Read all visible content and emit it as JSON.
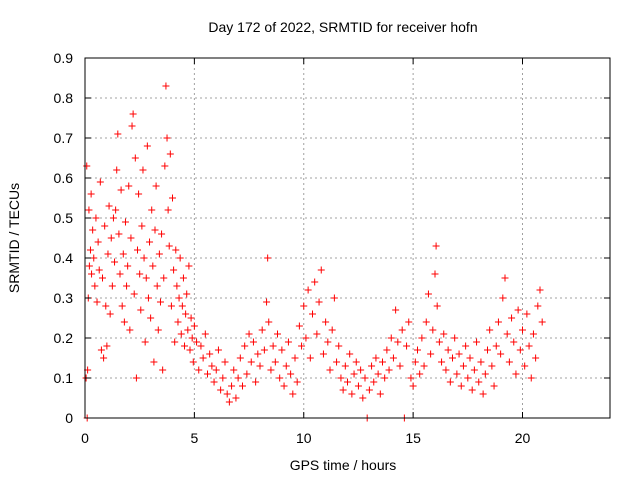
{
  "chart_data": {
    "type": "scatter",
    "title": "Day 172 of 2022, SRMTID for receiver hofn",
    "xlabel": "GPS time / hours",
    "ylabel": "SRMTID / TECUs",
    "xlim": [
      0,
      24
    ],
    "ylim": [
      0,
      0.9
    ],
    "xticks": [
      0,
      5,
      10,
      15,
      20
    ],
    "xtick_labels": [
      "0",
      "5",
      "10",
      "15",
      "20"
    ],
    "yticks": [
      0,
      0.1,
      0.2,
      0.3,
      0.4,
      0.5,
      0.6,
      0.7,
      0.8,
      0.9
    ],
    "ytick_labels": [
      "0",
      "0.1",
      "0.2",
      "0.3",
      "0.4",
      "0.5",
      "0.6",
      "0.7",
      "0.8",
      "0.9"
    ],
    "grid": true,
    "marker": "+",
    "marker_color": "#ff0000",
    "series": [
      {
        "name": "SRMTID",
        "points": [
          [
            0.05,
            0.1
          ],
          [
            0.08,
            0.63
          ],
          [
            0.1,
            0.0
          ],
          [
            0.12,
            0.12
          ],
          [
            0.15,
            0.3
          ],
          [
            0.18,
            0.52
          ],
          [
            0.2,
            0.38
          ],
          [
            0.25,
            0.42
          ],
          [
            0.28,
            0.56
          ],
          [
            0.3,
            0.36
          ],
          [
            0.35,
            0.47
          ],
          [
            0.4,
            0.4
          ],
          [
            0.45,
            0.33
          ],
          [
            0.5,
            0.5
          ],
          [
            0.55,
            0.29
          ],
          [
            0.6,
            0.44
          ],
          [
            0.65,
            0.37
          ],
          [
            0.7,
            0.59
          ],
          [
            0.75,
            0.17
          ],
          [
            0.8,
            0.35
          ],
          [
            0.85,
            0.15
          ],
          [
            0.9,
            0.48
          ],
          [
            0.95,
            0.28
          ],
          [
            1.0,
            0.18
          ],
          [
            1.05,
            0.41
          ],
          [
            1.1,
            0.53
          ],
          [
            1.15,
            0.26
          ],
          [
            1.2,
            0.45
          ],
          [
            1.25,
            0.33
          ],
          [
            1.3,
            0.5
          ],
          [
            1.35,
            0.39
          ],
          [
            1.4,
            0.52
          ],
          [
            1.45,
            0.62
          ],
          [
            1.5,
            0.71
          ],
          [
            1.55,
            0.46
          ],
          [
            1.6,
            0.36
          ],
          [
            1.65,
            0.57
          ],
          [
            1.7,
            0.28
          ],
          [
            1.75,
            0.41
          ],
          [
            1.8,
            0.24
          ],
          [
            1.85,
            0.49
          ],
          [
            1.9,
            0.33
          ],
          [
            1.95,
            0.38
          ],
          [
            2.0,
            0.58
          ],
          [
            2.05,
            0.22
          ],
          [
            2.1,
            0.45
          ],
          [
            2.15,
            0.73
          ],
          [
            2.2,
            0.76
          ],
          [
            2.25,
            0.31
          ],
          [
            2.3,
            0.65
          ],
          [
            2.35,
            0.1
          ],
          [
            2.4,
            0.42
          ],
          [
            2.45,
            0.56
          ],
          [
            2.5,
            0.36
          ],
          [
            2.55,
            0.27
          ],
          [
            2.6,
            0.48
          ],
          [
            2.65,
            0.62
          ],
          [
            2.7,
            0.4
          ],
          [
            2.75,
            0.19
          ],
          [
            2.8,
            0.35
          ],
          [
            2.85,
            0.68
          ],
          [
            2.9,
            0.3
          ],
          [
            2.95,
            0.44
          ],
          [
            3.0,
            0.25
          ],
          [
            3.05,
            0.52
          ],
          [
            3.1,
            0.38
          ],
          [
            3.15,
            0.14
          ],
          [
            3.2,
            0.47
          ],
          [
            3.25,
            0.58
          ],
          [
            3.3,
            0.33
          ],
          [
            3.35,
            0.22
          ],
          [
            3.4,
            0.41
          ],
          [
            3.45,
            0.29
          ],
          [
            3.5,
            0.46
          ],
          [
            3.55,
            0.12
          ],
          [
            3.6,
            0.35
          ],
          [
            3.65,
            0.63
          ],
          [
            3.7,
            0.83
          ],
          [
            3.75,
            0.7
          ],
          [
            3.8,
            0.52
          ],
          [
            3.85,
            0.43
          ],
          [
            3.9,
            0.66
          ],
          [
            3.95,
            0.28
          ],
          [
            4.0,
            0.55
          ],
          [
            4.05,
            0.37
          ],
          [
            4.1,
            0.19
          ],
          [
            4.15,
            0.42
          ],
          [
            4.2,
            0.33
          ],
          [
            4.25,
            0.24
          ],
          [
            4.3,
            0.3
          ],
          [
            4.35,
            0.4
          ],
          [
            4.4,
            0.21
          ],
          [
            4.45,
            0.28
          ],
          [
            4.5,
            0.35
          ],
          [
            4.55,
            0.18
          ],
          [
            4.6,
            0.26
          ],
          [
            4.65,
            0.31
          ],
          [
            4.7,
            0.22
          ],
          [
            4.75,
            0.38
          ],
          [
            4.8,
            0.17
          ],
          [
            4.85,
            0.25
          ],
          [
            4.9,
            0.2
          ],
          [
            4.95,
            0.14
          ],
          [
            5.0,
            0.23
          ],
          [
            5.1,
            0.19
          ],
          [
            5.2,
            0.12
          ],
          [
            5.3,
            0.18
          ],
          [
            5.4,
            0.15
          ],
          [
            5.5,
            0.21
          ],
          [
            5.6,
            0.11
          ],
          [
            5.7,
            0.16
          ],
          [
            5.8,
            0.13
          ],
          [
            5.9,
            0.09
          ],
          [
            6.0,
            0.12
          ],
          [
            6.1,
            0.17
          ],
          [
            6.2,
            0.07
          ],
          [
            6.3,
            0.1
          ],
          [
            6.4,
            0.14
          ],
          [
            6.5,
            0.06
          ],
          [
            6.6,
            0.04
          ],
          [
            6.7,
            0.08
          ],
          [
            6.8,
            0.12
          ],
          [
            6.9,
            0.05
          ],
          [
            7.0,
            0.1
          ],
          [
            7.1,
            0.15
          ],
          [
            7.2,
            0.08
          ],
          [
            7.3,
            0.18
          ],
          [
            7.4,
            0.11
          ],
          [
            7.5,
            0.21
          ],
          [
            7.6,
            0.14
          ],
          [
            7.7,
            0.19
          ],
          [
            7.8,
            0.09
          ],
          [
            7.9,
            0.16
          ],
          [
            8.0,
            0.13
          ],
          [
            8.1,
            0.22
          ],
          [
            8.2,
            0.17
          ],
          [
            8.3,
            0.29
          ],
          [
            8.35,
            0.4
          ],
          [
            8.4,
            0.24
          ],
          [
            8.5,
            0.12
          ],
          [
            8.6,
            0.18
          ],
          [
            8.7,
            0.14
          ],
          [
            8.8,
            0.21
          ],
          [
            8.9,
            0.1
          ],
          [
            9.0,
            0.17
          ],
          [
            9.1,
            0.08
          ],
          [
            9.2,
            0.13
          ],
          [
            9.3,
            0.19
          ],
          [
            9.4,
            0.11
          ],
          [
            9.5,
            0.06
          ],
          [
            9.6,
            0.15
          ],
          [
            9.7,
            0.09
          ],
          [
            9.8,
            0.23
          ],
          [
            9.9,
            0.18
          ],
          [
            10.0,
            0.28
          ],
          [
            10.1,
            0.2
          ],
          [
            10.2,
            0.32
          ],
          [
            10.3,
            0.15
          ],
          [
            10.4,
            0.26
          ],
          [
            10.5,
            0.34
          ],
          [
            10.6,
            0.21
          ],
          [
            10.7,
            0.29
          ],
          [
            10.8,
            0.37
          ],
          [
            10.9,
            0.16
          ],
          [
            11.0,
            0.24
          ],
          [
            11.1,
            0.19
          ],
          [
            11.2,
            0.12
          ],
          [
            11.3,
            0.22
          ],
          [
            11.4,
            0.3
          ],
          [
            11.5,
            0.14
          ],
          [
            11.6,
            0.18
          ],
          [
            11.7,
            0.1
          ],
          [
            11.8,
            0.07
          ],
          [
            11.9,
            0.13
          ],
          [
            12.0,
            0.09
          ],
          [
            12.1,
            0.16
          ],
          [
            12.2,
            0.06
          ],
          [
            12.3,
            0.11
          ],
          [
            12.4,
            0.14
          ],
          [
            12.5,
            0.08
          ],
          [
            12.6,
            0.12
          ],
          [
            12.7,
            0.05
          ],
          [
            12.8,
            0.1
          ],
          [
            12.9,
            0.0
          ],
          [
            13.0,
            0.07
          ],
          [
            13.1,
            0.13
          ],
          [
            13.2,
            0.09
          ],
          [
            13.3,
            0.15
          ],
          [
            13.4,
            0.11
          ],
          [
            13.5,
            0.06
          ],
          [
            13.6,
            0.14
          ],
          [
            13.7,
            0.1
          ],
          [
            13.8,
            0.17
          ],
          [
            13.9,
            0.12
          ],
          [
            14.0,
            0.2
          ],
          [
            14.1,
            0.15
          ],
          [
            14.2,
            0.27
          ],
          [
            14.3,
            0.19
          ],
          [
            14.4,
            0.13
          ],
          [
            14.5,
            0.22
          ],
          [
            14.6,
            0.0
          ],
          [
            14.7,
            0.18
          ],
          [
            14.8,
            0.24
          ],
          [
            14.9,
            0.1
          ],
          [
            15.0,
            0.08
          ],
          [
            15.1,
            0.14
          ],
          [
            15.2,
            0.17
          ],
          [
            15.3,
            0.11
          ],
          [
            15.4,
            0.2
          ],
          [
            15.5,
            0.13
          ],
          [
            15.6,
            0.24
          ],
          [
            15.7,
            0.31
          ],
          [
            15.8,
            0.16
          ],
          [
            15.9,
            0.22
          ],
          [
            16.0,
            0.36
          ],
          [
            16.05,
            0.43
          ],
          [
            16.1,
            0.28
          ],
          [
            16.2,
            0.19
          ],
          [
            16.3,
            0.14
          ],
          [
            16.4,
            0.21
          ],
          [
            16.5,
            0.12
          ],
          [
            16.6,
            0.17
          ],
          [
            16.7,
            0.09
          ],
          [
            16.8,
            0.15
          ],
          [
            16.9,
            0.2
          ],
          [
            17.0,
            0.11
          ],
          [
            17.1,
            0.16
          ],
          [
            17.2,
            0.08
          ],
          [
            17.3,
            0.13
          ],
          [
            17.4,
            0.18
          ],
          [
            17.5,
            0.1
          ],
          [
            17.6,
            0.15
          ],
          [
            17.7,
            0.07
          ],
          [
            17.8,
            0.12
          ],
          [
            17.9,
            0.19
          ],
          [
            18.0,
            0.09
          ],
          [
            18.1,
            0.14
          ],
          [
            18.2,
            0.06
          ],
          [
            18.3,
            0.11
          ],
          [
            18.4,
            0.17
          ],
          [
            18.5,
            0.22
          ],
          [
            18.6,
            0.13
          ],
          [
            18.7,
            0.08
          ],
          [
            18.8,
            0.18
          ],
          [
            18.9,
            0.24
          ],
          [
            19.0,
            0.16
          ],
          [
            19.1,
            0.3
          ],
          [
            19.2,
            0.35
          ],
          [
            19.3,
            0.21
          ],
          [
            19.4,
            0.14
          ],
          [
            19.5,
            0.25
          ],
          [
            19.6,
            0.19
          ],
          [
            19.7,
            0.11
          ],
          [
            19.8,
            0.27
          ],
          [
            19.9,
            0.17
          ],
          [
            20.0,
            0.22
          ],
          [
            20.1,
            0.13
          ],
          [
            20.2,
            0.26
          ],
          [
            20.3,
            0.18
          ],
          [
            20.4,
            0.1
          ],
          [
            20.5,
            0.21
          ],
          [
            20.6,
            0.15
          ],
          [
            20.7,
            0.28
          ],
          [
            20.8,
            0.32
          ],
          [
            20.9,
            0.24
          ]
        ]
      }
    ]
  }
}
